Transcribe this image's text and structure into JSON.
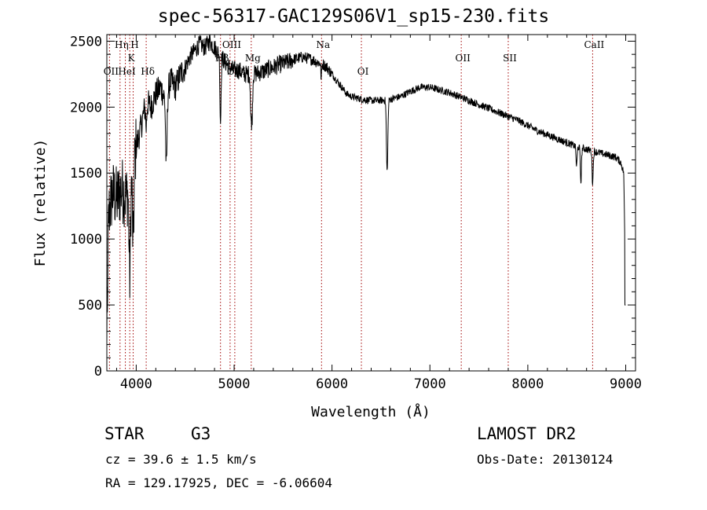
{
  "chart_data": {
    "type": "line",
    "title": "spec-56317-GAC129S06V1_sp15-230.fits",
    "xlabel": "Wavelength (Å)",
    "ylabel": "Flux (relative)",
    "xlim": [
      3700,
      9100
    ],
    "ylim": [
      0,
      2550
    ],
    "xticks": [
      4000,
      5000,
      6000,
      7000,
      8000,
      9000
    ],
    "yticks": [
      0,
      500,
      1000,
      1500,
      2000,
      2500
    ],
    "continuum": {
      "x": [
        3700,
        3720,
        3760,
        3800,
        3850,
        3900,
        3950,
        4000,
        4050,
        4100,
        4150,
        4200,
        4250,
        4300,
        4350,
        4400,
        4450,
        4500,
        4550,
        4600,
        4650,
        4700,
        4750,
        4800,
        4850,
        4900,
        4950,
        5000,
        5050,
        5100,
        5150,
        5200,
        5250,
        5300,
        5350,
        5400,
        5450,
        5500,
        5550,
        5600,
        5650,
        5700,
        5750,
        5800,
        5850,
        5900,
        5950,
        6000,
        6050,
        6100,
        6150,
        6200,
        6300,
        6400,
        6500,
        6600,
        6700,
        6800,
        6900,
        7000,
        7100,
        7200,
        7300,
        7400,
        7500,
        7600,
        7700,
        7800,
        7900,
        8000,
        8100,
        8200,
        8300,
        8400,
        8500,
        8600,
        8700,
        8800,
        8900,
        8950,
        8980,
        9000
      ],
      "y": [
        600,
        1200,
        1350,
        1300,
        1380,
        1320,
        1450,
        1700,
        1850,
        2050,
        2000,
        2100,
        2150,
        2050,
        2200,
        2150,
        2250,
        2300,
        2380,
        2430,
        2480,
        2450,
        2500,
        2450,
        2400,
        2350,
        2300,
        2280,
        2280,
        2250,
        2250,
        2250,
        2260,
        2270,
        2290,
        2300,
        2320,
        2330,
        2340,
        2360,
        2370,
        2380,
        2370,
        2360,
        2340,
        2330,
        2300,
        2250,
        2200,
        2150,
        2100,
        2080,
        2060,
        2050,
        2050,
        2060,
        2080,
        2120,
        2150,
        2150,
        2130,
        2110,
        2080,
        2050,
        2020,
        1990,
        1960,
        1930,
        1900,
        1860,
        1820,
        1790,
        1760,
        1730,
        1700,
        1680,
        1660,
        1640,
        1620,
        1580,
        1500,
        500
      ]
    },
    "absorption": [
      {
        "x": 3934,
        "depth": 700,
        "width": 10
      },
      {
        "x": 3969,
        "depth": 600,
        "width": 10
      },
      {
        "x": 4102,
        "depth": 200,
        "width": 8
      },
      {
        "x": 4308,
        "depth": 550,
        "width": 10
      },
      {
        "x": 4861,
        "depth": 500,
        "width": 8
      },
      {
        "x": 5172,
        "depth": 330,
        "width": 8
      },
      {
        "x": 5184,
        "depth": 300,
        "width": 8
      },
      {
        "x": 5890,
        "depth": 120,
        "width": 6
      },
      {
        "x": 6563,
        "depth": 550,
        "width": 10
      },
      {
        "x": 8498,
        "depth": 150,
        "width": 8
      },
      {
        "x": 8542,
        "depth": 260,
        "width": 8
      },
      {
        "x": 8662,
        "depth": 240,
        "width": 8
      }
    ],
    "line_markers": [
      {
        "label": "OII",
        "x": 3727,
        "row": 3
      },
      {
        "label": "Hη",
        "x": 3835,
        "row": 1
      },
      {
        "label": "HeI",
        "x": 3889,
        "row": 3
      },
      {
        "label": "K",
        "x": 3934,
        "row": 2
      },
      {
        "label": "H",
        "x": 3969,
        "row": 1
      },
      {
        "label": "Hδ",
        "x": 4102,
        "row": 3
      },
      {
        "label": "Hβ",
        "x": 4861,
        "row": 2
      },
      {
        "label": "OIII",
        "x": 4959,
        "row": 1
      },
      {
        "label": "OIII",
        "x": 5007,
        "row": 3
      },
      {
        "label": "Mg",
        "x": 5175,
        "row": 2
      },
      {
        "label": "Na",
        "x": 5893,
        "row": 1
      },
      {
        "label": "OI",
        "x": 6300,
        "row": 3
      },
      {
        "label": "OII",
        "x": 7320,
        "row": 2
      },
      {
        "label": "SII",
        "x": 7800,
        "row": 2
      },
      {
        "label": "CaII",
        "x": 8662,
        "row": 1
      }
    ]
  },
  "footer": {
    "object_class": "STAR",
    "subclass": "G3",
    "survey": "LAMOST DR2",
    "redshift": "cz = 39.6 ± 1.5 km/s",
    "obs_date": "Obs-Date: 20130124",
    "coords": "RA = 129.17925, DEC =  -6.06604"
  }
}
